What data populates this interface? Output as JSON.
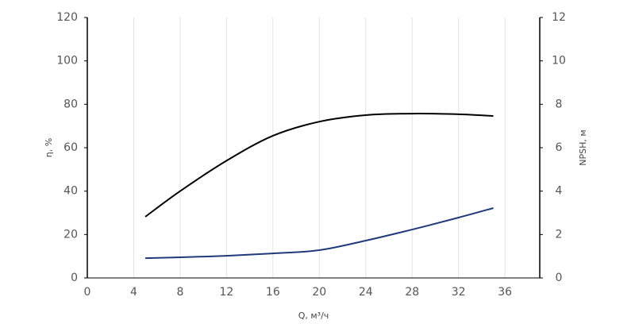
{
  "chart_data": {
    "type": "line",
    "x_label": "Q, м³/ч",
    "y_label": "η, %",
    "y2_label": "NPSH, м",
    "xlim": [
      0,
      39
    ],
    "xticks": [
      0,
      4,
      8,
      12,
      16,
      20,
      24,
      28,
      32,
      36
    ],
    "ylim": [
      0,
      120
    ],
    "yticks": [
      0,
      20,
      40,
      60,
      80,
      100,
      120
    ],
    "y2lim": [
      0,
      12
    ],
    "y2ticks": [
      0,
      2,
      4,
      6,
      8,
      10,
      12
    ],
    "grid": true,
    "series": [
      {
        "color": "#000000",
        "x": [
          5,
          8,
          12,
          16,
          20,
          24,
          28,
          32,
          35
        ],
        "values": [
          28.2,
          40,
          54,
          65.5,
          72,
          75,
          75.7,
          75.4,
          74.6
        ]
      },
      {
        "color": "#1f3a7a",
        "axis": "y2",
        "x": [
          5,
          8,
          12,
          16,
          20,
          24,
          28,
          32,
          35
        ],
        "values": [
          0.91,
          0.95,
          1.02,
          1.13,
          1.28,
          1.72,
          2.23,
          2.78,
          3.22
        ]
      }
    ]
  }
}
